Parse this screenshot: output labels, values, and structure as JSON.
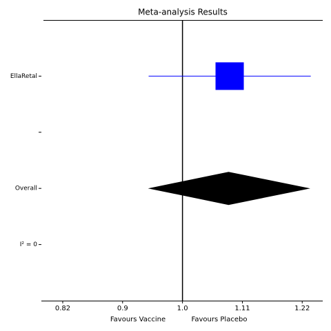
{
  "chart_data": {
    "type": "forest",
    "title": "Meta-analysis Results",
    "categories": [
      "EllaRetal",
      null,
      "Overall",
      "I² = 0"
    ],
    "estimates": [
      1.082,
      null,
      1.08,
      null
    ],
    "lower": [
      0.945,
      null,
      0.944,
      null
    ],
    "upper": [
      1.239,
      null,
      1.238,
      null
    ],
    "summary_rows": [
      2
    ],
    "box_color": "#0000ff",
    "summary_color": "#000000",
    "reference_line": 1,
    "xscale": "log",
    "xlim": [
      0.79,
      1.264
    ],
    "xticks": [
      {
        "value": 0.8187,
        "label": "0.82"
      },
      {
        "value": 0.9048,
        "label": "0.9"
      },
      {
        "value": 1,
        "label": "1.0"
      },
      {
        "value": 1.1052,
        "label": "1.11"
      },
      {
        "value": 1.2214,
        "label": "1.22"
      }
    ],
    "xlabel_left": "Favours Vaccine",
    "xlabel_right": "Favours Placebo"
  }
}
